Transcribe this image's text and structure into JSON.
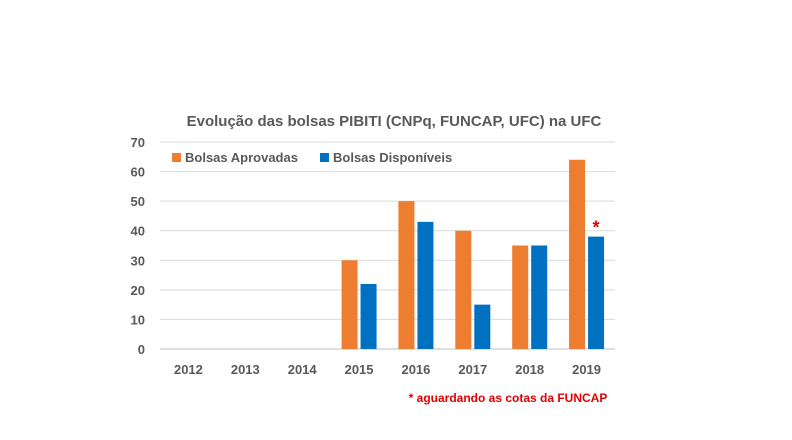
{
  "chart_data": {
    "type": "bar",
    "title": "Evolução das bolsas PIBITI (CNPq, FUNCAP, UFC) na UFC",
    "categories": [
      "2012",
      "2013",
      "2014",
      "2015",
      "2016",
      "2017",
      "2018",
      "2019"
    ],
    "series": [
      {
        "name": "Bolsas Aprovadas",
        "color": "#ED7D31",
        "values": [
          0,
          0,
          0,
          30,
          50,
          40,
          35,
          64
        ]
      },
      {
        "name": "Bolsas Disponíveis",
        "color": "#0070C0",
        "values": [
          0,
          0,
          0,
          22,
          43,
          15,
          35,
          38
        ]
      }
    ],
    "ylim": [
      0,
      70
    ],
    "yticks": [
      "0",
      "10",
      "20",
      "30",
      "40",
      "50",
      "60",
      "70"
    ],
    "legend_position": "top-left",
    "annotation_marker": "*",
    "annotation_category": "2019",
    "footnote": "* aguardando as cotas da FUNCAP"
  }
}
